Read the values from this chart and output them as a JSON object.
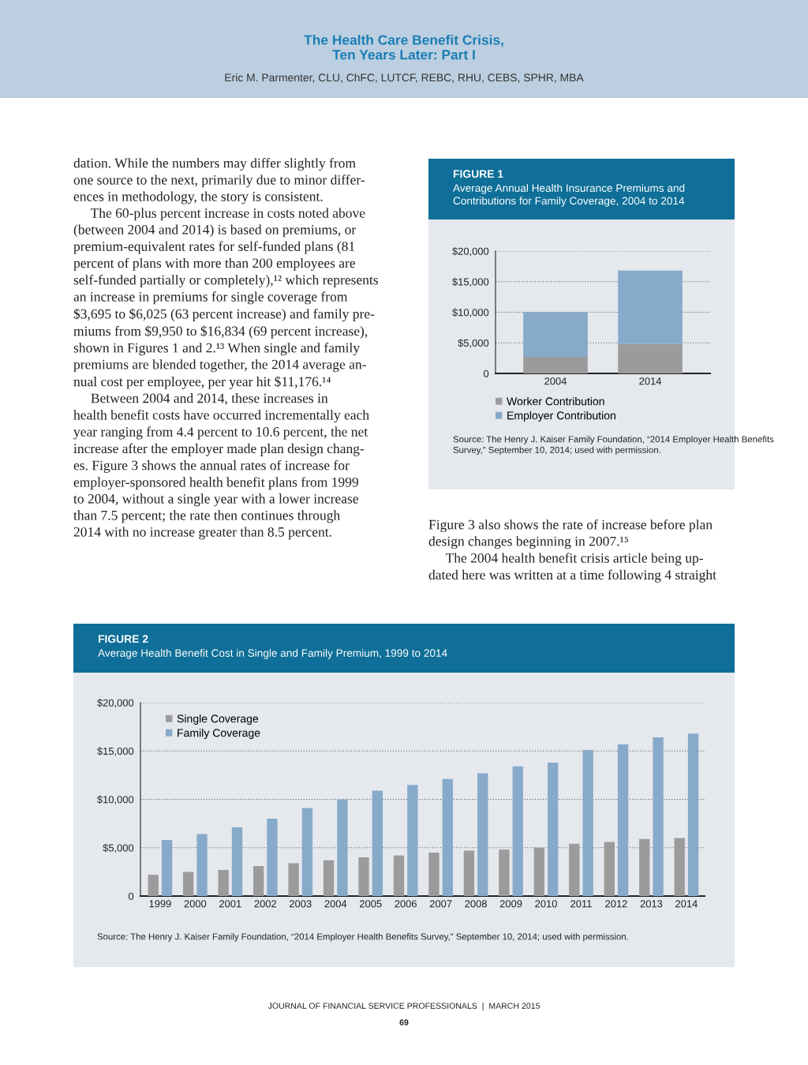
{
  "chart_data": [
    {
      "type": "other",
      "title": "The Health Care Benefit Crisis,\nTen Years Later: Part I",
      "subtitle": "Eric M. Parmenter, CLU, ChFC, LUTCF, REBC, RHU, CEBS, SPHR, MBA",
      "annotations": [
        "dation. While the numbers may differ slightly from\none source to the next, primarily due to minor differ-\nences in methodology, the story is consistent.\n     The 60-plus percent increase in costs noted above\n(between 2004 and 2014) is based on premiums, or\npremium-equivalent rates for self-funded plans (81\npercent of plans with more than 200 employees are\nself-funded partially or completely),¹² which represents\nan increase in premiums for single coverage from\n$3,695 to $6,025 (63 percent increase) and family pre-\nmiums from $9,950 to $16,834 (69 percent increase),\nshown in Figures 1 and 2.¹³ When single and family\npremiums are blended together, the 2014 average an-\nnual cost per employee, per year hit $11,176.¹⁴\n     Between 2004 and 2014, these increases in\nhealth benefit costs have occurred incrementally each\nyear ranging from 4.4 percent to 10.6 percent, the net\nincrease after the employer made plan design chang-\nes. Figure 3 shows the annual rates of increase for\nemployer-sponsored health benefit plans from 1999\nto 2004, without a single year with a lower increase\nthan 7.5 percent; the rate then continues through\n2014 with no increase greater than 8.5 percent.",
        "Figure 3 also shows the rate of increase before plan\ndesign changes beginning in 2007.¹⁵\n     The 2004 health benefit crisis article being up-\ndated here was written at a time following 4 straight",
        "JOURNAL OF FINANCIAL SERVICE PROFESSIONALS  |  MARCH 2015",
        "69"
      ]
    },
    {
      "type": "bar",
      "stacked": true,
      "title": "FIGURE 1",
      "subtitle": "Average Annual Health Insurance Premiums and\nContributions for Family Coverage, 2004 to 2014",
      "categories": [
        "2004",
        "2014"
      ],
      "series": [
        {
          "name": "Worker Contribution",
          "color": "#9b9b9b",
          "values": [
            2700,
            4800
          ]
        },
        {
          "name": "Employer Contribution",
          "color": "#87aacb",
          "values": [
            7300,
            12000
          ]
        }
      ],
      "ylim": [
        0,
        20000
      ],
      "yticks": [
        0,
        {
          "value": 5000,
          "label": "$5,000"
        },
        {
          "value": 10000,
          "label": "$10,000"
        },
        {
          "value": 15000,
          "label": "$15,000"
        },
        {
          "value": 20000,
          "label": "$20,000"
        }
      ],
      "grid": "y",
      "legend": "bottom",
      "annotations": [
        "Source: The Henry J. Kaiser Family Foundation, “2014 Employer Health Benefits Survey,” September 10, 2014; used with permission."
      ]
    },
    {
      "type": "bar",
      "title": "FIGURE 2",
      "subtitle": "Average Health Benefit Cost in Single and Family Premium, 1999 to 2014",
      "categories": [
        "1999",
        "2000",
        "2001",
        "2002",
        "2003",
        "2004",
        "2005",
        "2006",
        "2007",
        "2008",
        "2009",
        "2010",
        "2011",
        "2012",
        "2013",
        "2014"
      ],
      "series": [
        {
          "name": "Single Coverage",
          "color": "#9b9b9b",
          "values": [
            2200,
            2500,
            2700,
            3100,
            3400,
            3700,
            4000,
            4200,
            4500,
            4700,
            4800,
            5000,
            5400,
            5600,
            5900,
            6000
          ]
        },
        {
          "name": "Family Coverage",
          "color": "#87aacb",
          "values": [
            5800,
            6400,
            7100,
            8000,
            9100,
            10000,
            10900,
            11500,
            12100,
            12700,
            13400,
            13800,
            15100,
            15700,
            16400,
            16800
          ]
        }
      ],
      "ylim": [
        0,
        20000
      ],
      "yticks": [
        0,
        {
          "value": 5000,
          "label": "$5,000"
        },
        {
          "value": 10000,
          "label": "$10,000"
        },
        {
          "value": 15000,
          "label": "$15,000"
        },
        {
          "value": 20000,
          "label": "$20,000"
        }
      ],
      "grid": "y",
      "legend": "top left",
      "annotations": [
        "Source: The Henry J. Kaiser Family Foundation, “2014 Employer Health Benefits Survey,” September 10, 2014; used with permission."
      ]
    }
  ]
}
